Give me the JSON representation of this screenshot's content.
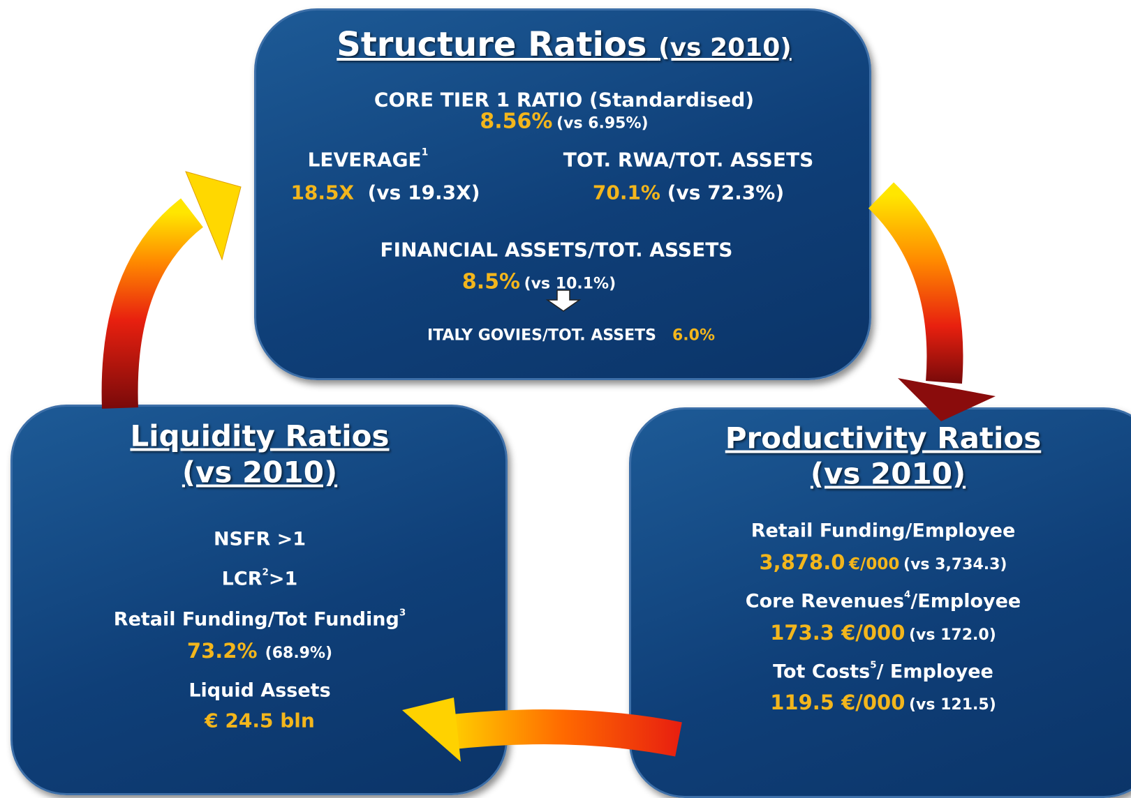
{
  "structure": {
    "title": "Structure Ratios",
    "subtitle": "(vs 2010)",
    "core_tier": {
      "label": "CORE TIER 1 RATIO (Standardised)",
      "value": "8.56%",
      "compare": "(vs 6.95%)"
    },
    "leverage": {
      "label": "LEVERAGE",
      "note": "1",
      "value": "18.5X",
      "compare": "(vs 19.3X)"
    },
    "rwa": {
      "label": "TOT. RWA/TOT. ASSETS",
      "value": "70.1%",
      "compare": "(vs 72.3%)"
    },
    "financial": {
      "label": "FINANCIAL ASSETS/TOT. ASSETS",
      "value": "8.5%",
      "compare": "(vs 10.1%)"
    },
    "italy": {
      "label": "ITALY GOVIES/TOT. ASSETS",
      "value": "6.0%"
    }
  },
  "liquidity": {
    "title": "Liquidity Ratios",
    "subtitle": "(vs 2010)",
    "nsfr": {
      "label": "NSFR >1"
    },
    "lcr": {
      "label": "LCR",
      "note": "2",
      "suffix": ">1"
    },
    "retail": {
      "label": "Retail Funding/Tot Funding",
      "note": "3",
      "value": "73.2%",
      "compare": "(68.9%)"
    },
    "liquid": {
      "label": "Liquid Assets",
      "value": "€ 24.5 bln"
    }
  },
  "productivity": {
    "title": "Productivity Ratios",
    "subtitle": "(vs 2010)",
    "retail": {
      "label": "Retail Funding/Employee",
      "value": "3,878.0",
      "unit": "€/000",
      "compare": "(vs 3,734.3)"
    },
    "revenues": {
      "label": "Core Revenues",
      "note": "4",
      "suffix": "/Employee",
      "value": "173.3 €/000",
      "compare": "(vs 172.0)"
    },
    "costs": {
      "label": "Tot Costs",
      "note": "5",
      "suffix": "/ Employee",
      "value": "119.5 €/000",
      "compare": "(vs 121.5)"
    }
  }
}
